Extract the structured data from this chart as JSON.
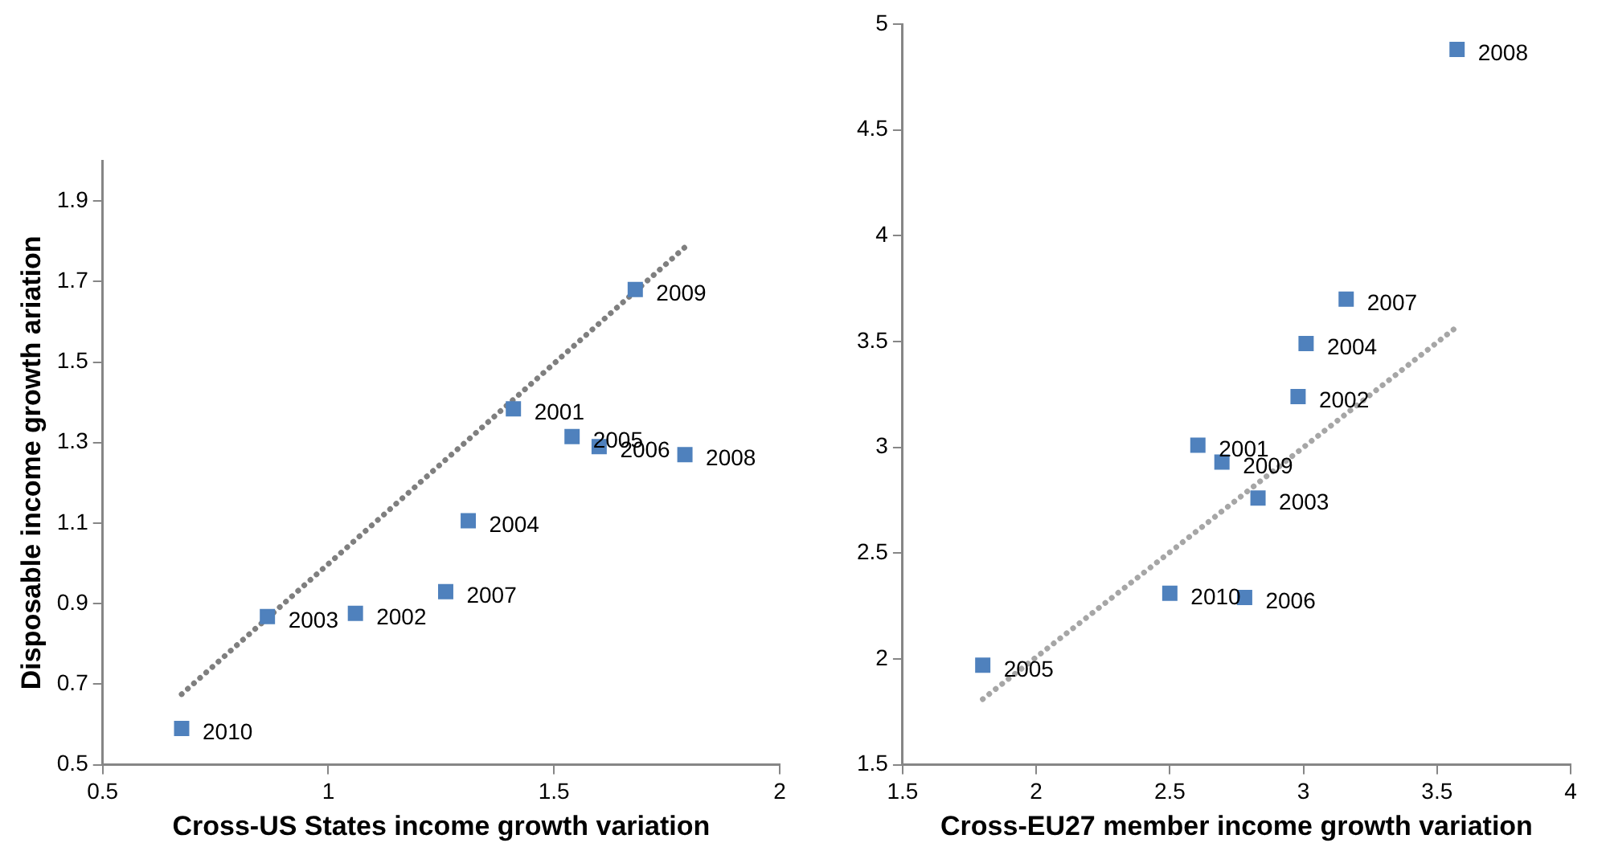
{
  "chart_data": [
    {
      "type": "scatter",
      "xlabel": "Cross-US States income growth variation",
      "ylabel": "Disposable income growth ariation",
      "xlim": [
        0.5,
        2
      ],
      "ylim": [
        0.5,
        2.0
      ],
      "xticks": [
        0.5,
        1,
        1.5,
        2
      ],
      "yticks": [
        0.5,
        0.7,
        0.9,
        1.1,
        1.3,
        1.5,
        1.7,
        1.9
      ],
      "series": [
        {
          "type": "scatter",
          "color": "#4f81bd",
          "marker": "square",
          "x": [
            1.41,
            1.06,
            0.865,
            1.31,
            1.54,
            1.6,
            1.26,
            1.79,
            1.68,
            0.675
          ],
          "values": [
            1.384,
            0.876,
            0.868,
            1.106,
            1.315,
            1.29,
            0.93,
            1.27,
            1.68,
            0.59
          ]
        },
        {
          "type": "line",
          "color": "#7f7f7f",
          "marker": "none",
          "line_style": "dotted",
          "x": [
            0.675,
            1.79
          ],
          "values": [
            0.675,
            1.785
          ]
        }
      ],
      "annotations": [
        {
          "text": "2001",
          "x": 1.41,
          "y": 1.384
        },
        {
          "text": "2002",
          "x": 1.06,
          "y": 0.876
        },
        {
          "text": "2003",
          "x": 0.865,
          "y": 0.868
        },
        {
          "text": "2004",
          "x": 1.31,
          "y": 1.106
        },
        {
          "text": "2005",
          "x": 1.54,
          "y": 1.315
        },
        {
          "text": "2006",
          "x": 1.6,
          "y": 1.29
        },
        {
          "text": "2007",
          "x": 1.26,
          "y": 0.93
        },
        {
          "text": "2008",
          "x": 1.79,
          "y": 1.27
        },
        {
          "text": "2009",
          "x": 1.68,
          "y": 1.68
        },
        {
          "text": "2010",
          "x": 0.675,
          "y": 0.59
        }
      ]
    },
    {
      "type": "scatter",
      "xlabel": "Cross-EU27 member income growth variation",
      "xlim": [
        1.5,
        4
      ],
      "ylim": [
        1.5,
        5
      ],
      "xticks": [
        1.5,
        2,
        2.5,
        3,
        3.5,
        4
      ],
      "yticks": [
        1.5,
        2,
        2.5,
        3,
        3.5,
        4,
        4.5,
        5
      ],
      "series": [
        {
          "type": "scatter",
          "color": "#4f81bd",
          "marker": "square",
          "x": [
            2.605,
            2.98,
            2.83,
            3.01,
            1.8,
            2.78,
            3.16,
            3.575,
            2.695,
            2.5
          ],
          "values": [
            3.01,
            3.24,
            2.76,
            3.49,
            1.97,
            2.29,
            3.7,
            4.88,
            2.93,
            2.31
          ]
        },
        {
          "type": "line",
          "color": "#a6a6a6",
          "marker": "none",
          "line_style": "dotted",
          "x": [
            1.8,
            3.575
          ],
          "values": [
            1.81,
            3.57
          ]
        }
      ],
      "annotations": [
        {
          "text": "2001",
          "x": 2.605,
          "y": 3.01
        },
        {
          "text": "2002",
          "x": 2.98,
          "y": 3.24
        },
        {
          "text": "2003",
          "x": 2.83,
          "y": 2.76
        },
        {
          "text": "2004",
          "x": 3.01,
          "y": 3.49
        },
        {
          "text": "2005",
          "x": 1.8,
          "y": 1.97
        },
        {
          "text": "2006",
          "x": 2.78,
          "y": 2.29
        },
        {
          "text": "2007",
          "x": 3.16,
          "y": 3.7
        },
        {
          "text": "2008",
          "x": 3.575,
          "y": 4.88
        },
        {
          "text": "2009",
          "x": 2.695,
          "y": 2.93
        },
        {
          "text": "2010",
          "x": 2.5,
          "y": 2.31
        }
      ]
    }
  ]
}
